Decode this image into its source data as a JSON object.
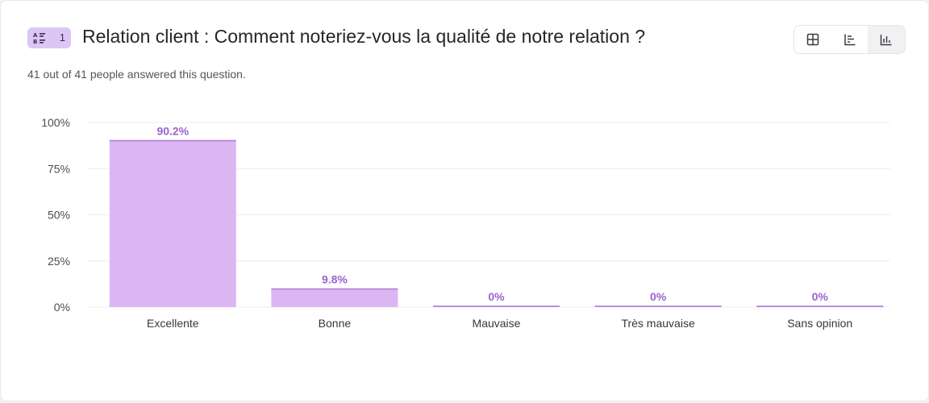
{
  "question": {
    "number": "1",
    "title": "Relation client : Comment noteriez-vous la qualité de notre relation ?",
    "answered_text": "41 out of 41 people answered this question."
  },
  "view_toggle": [
    {
      "name": "table-view",
      "active": false
    },
    {
      "name": "horizontal-bar-view",
      "active": false
    },
    {
      "name": "vertical-bar-view",
      "active": true
    }
  ],
  "colors": {
    "bar_fill": "#dcb6f2",
    "bar_stroke": "#a978d8",
    "value_label": "#9a63cf",
    "grid": "#ececef"
  },
  "chart_data": {
    "type": "bar",
    "title": "",
    "xlabel": "",
    "ylabel": "",
    "categories": [
      "Excellente",
      "Bonne",
      "Mauvaise",
      "Très mauvaise",
      "Sans opinion"
    ],
    "values": [
      90.2,
      9.8,
      0,
      0,
      0
    ],
    "value_labels": [
      "90.2%",
      "9.8%",
      "0%",
      "0%",
      "0%"
    ],
    "ylim": [
      0,
      100
    ],
    "yticks": [
      0,
      25,
      50,
      75,
      100
    ],
    "ytick_labels": [
      "0%",
      "25%",
      "50%",
      "75%",
      "100%"
    ],
    "grid": true
  }
}
